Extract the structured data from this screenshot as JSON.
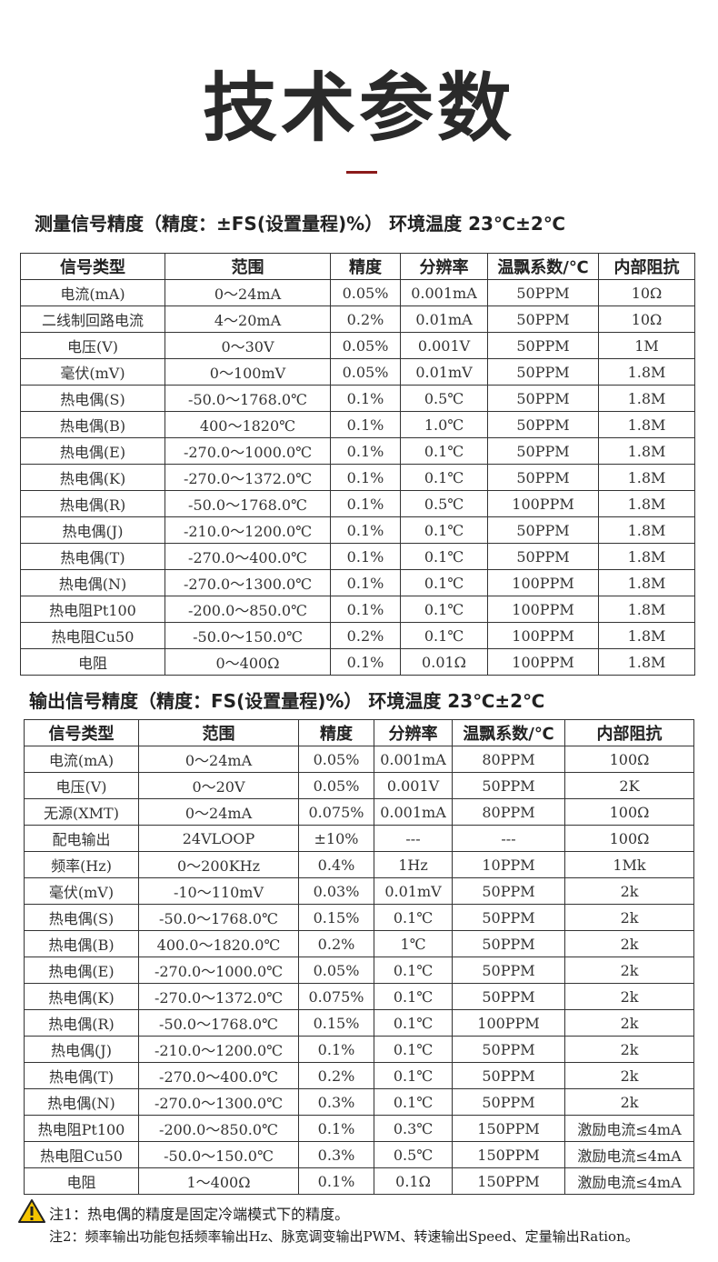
{
  "header": {
    "title": "技术参数"
  },
  "section1": {
    "heading": "测量信号精度（精度：±FS(设置量程)%）  环境温度 23℃±2℃"
  },
  "table1": {
    "header": [
      "信号类型",
      "范围",
      "精度",
      "分辨率",
      "温飘系数/℃",
      "内部阻抗"
    ],
    "rows": [
      [
        "电流(mA)",
        "0～24mA",
        "0.05%",
        "0.001mA",
        "50PPM",
        "10Ω"
      ],
      [
        "二线制回路电流",
        "4～20mA",
        "0.2%",
        "0.01mA",
        "50PPM",
        "10Ω"
      ],
      [
        "电压(V)",
        "0～30V",
        "0.05%",
        "0.001V",
        "50PPM",
        "1M"
      ],
      [
        "毫伏(mV)",
        "0～100mV",
        "0.05%",
        "0.01mV",
        "50PPM",
        "1.8M"
      ],
      [
        "热电偶(S)",
        "-50.0～1768.0℃",
        "0.1%",
        "0.5℃",
        "50PPM",
        "1.8M"
      ],
      [
        "热电偶(B)",
        "400～1820℃",
        "0.1%",
        "1.0℃",
        "50PPM",
        "1.8M"
      ],
      [
        "热电偶(E)",
        "-270.0～1000.0℃",
        "0.1%",
        "0.1℃",
        "50PPM",
        "1.8M"
      ],
      [
        "热电偶(K)",
        "-270.0～1372.0℃",
        "0.1%",
        "0.1℃",
        "50PPM",
        "1.8M"
      ],
      [
        "热电偶(R)",
        "-50.0～1768.0℃",
        "0.1%",
        "0.5℃",
        "100PPM",
        "1.8M"
      ],
      [
        "热电偶(J)",
        "-210.0～1200.0℃",
        "0.1%",
        "0.1℃",
        "50PPM",
        "1.8M"
      ],
      [
        "热电偶(T)",
        "-270.0～400.0℃",
        "0.1%",
        "0.1℃",
        "50PPM",
        "1.8M"
      ],
      [
        "热电偶(N)",
        "-270.0～1300.0℃",
        "0.1%",
        "0.1℃",
        "100PPM",
        "1.8M"
      ],
      [
        "热电阻Pt100",
        "-200.0～850.0℃",
        "0.1%",
        "0.1℃",
        "100PPM",
        "1.8M"
      ],
      [
        "热电阻Cu50",
        "-50.0～150.0℃",
        "0.2%",
        "0.1℃",
        "100PPM",
        "1.8M"
      ],
      [
        "电阻",
        "0～400Ω",
        "0.1%",
        "0.01Ω",
        "100PPM",
        "1.8M"
      ]
    ]
  },
  "section2": {
    "heading": "输出信号精度（精度：FS(设置量程)%）  环境温度 23℃±2℃"
  },
  "table2": {
    "header": [
      "信号类型",
      "范围",
      "精度",
      "分辨率",
      "温飘系数/℃",
      "内部阻抗"
    ],
    "rows": [
      [
        "电流(mA)",
        "0～24mA",
        "0.05%",
        "0.001mA",
        "80PPM",
        "100Ω"
      ],
      [
        "电压(V)",
        "0～20V",
        "0.05%",
        "0.001V",
        "50PPM",
        "2K"
      ],
      [
        "无源(XMT)",
        "0～24mA",
        "0.075%",
        "0.001mA",
        "80PPM",
        "100Ω"
      ],
      [
        "配电输出",
        "24VLOOP",
        "±10%",
        "---",
        "---",
        "100Ω"
      ],
      [
        "频率(Hz)",
        "0～200KHz",
        "0.4%",
        "1Hz",
        "10PPM",
        "1Mk"
      ],
      [
        "毫伏(mV)",
        "-10～110mV",
        "0.03%",
        "0.01mV",
        "50PPM",
        "2k"
      ],
      [
        "热电偶(S)",
        "-50.0～1768.0℃",
        "0.15%",
        "0.1℃",
        "50PPM",
        "2k"
      ],
      [
        "热电偶(B)",
        "400.0～1820.0℃",
        "0.2%",
        "1℃",
        "50PPM",
        "2k"
      ],
      [
        "热电偶(E)",
        "-270.0～1000.0℃",
        "0.05%",
        "0.1℃",
        "50PPM",
        "2k"
      ],
      [
        "热电偶(K)",
        "-270.0～1372.0℃",
        "0.075%",
        "0.1℃",
        "50PPM",
        "2k"
      ],
      [
        "热电偶(R)",
        "-50.0～1768.0℃",
        "0.15%",
        "0.1℃",
        "100PPM",
        "2k"
      ],
      [
        "热电偶(J)",
        "-210.0～1200.0℃",
        "0.1%",
        "0.1℃",
        "50PPM",
        "2k"
      ],
      [
        "热电偶(T)",
        "-270.0～400.0℃",
        "0.2%",
        "0.1℃",
        "50PPM",
        "2k"
      ],
      [
        "热电偶(N)",
        "-270.0～1300.0℃",
        "0.3%",
        "0.1℃",
        "50PPM",
        "2k"
      ],
      [
        "热电阻Pt100",
        "-200.0～850.0℃",
        "0.1%",
        "0.3℃",
        "150PPM",
        "激励电流≤4mA"
      ],
      [
        "热电阻Cu50",
        "-50.0～150.0℃",
        "0.3%",
        "0.5℃",
        "150PPM",
        "激励电流≤4mA"
      ],
      [
        "电阻",
        "1～400Ω",
        "0.1%",
        "0.1Ω",
        "150PPM",
        "激励电流≤4mA"
      ]
    ]
  },
  "notes": [
    "注1：热电偶的精度是固定冷端模式下的精度。",
    "注2：频率输出功能包括频率输出Hz、脉宽调变输出PWM、转速输出Speed、定量输出Ration。"
  ]
}
